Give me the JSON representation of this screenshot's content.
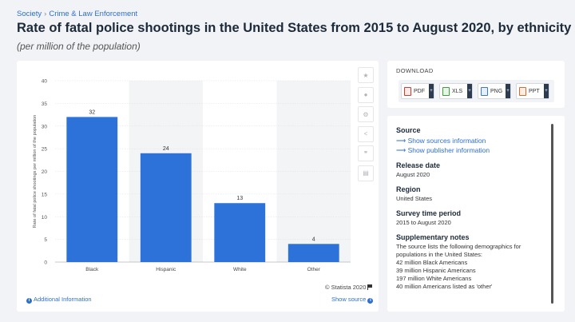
{
  "breadcrumb": {
    "section": "Society",
    "separator": "›",
    "category": "Crime & Law Enforcement"
  },
  "title": "Rate of fatal police shootings in the United States from 2015 to August 2020, by ethnicity",
  "subtitle": "(per million of the population)",
  "chart_data": {
    "type": "bar",
    "categories": [
      "Black",
      "Hispanic",
      "White",
      "Other"
    ],
    "values": [
      32,
      24,
      13,
      4
    ],
    "ylabel": "Rate of fatal police shootings per million of the population",
    "ylim": [
      0,
      40
    ],
    "yticks": [
      0,
      5,
      10,
      15,
      20,
      25,
      30,
      35,
      40
    ],
    "bar_color": "#2d72d9",
    "grid": true,
    "alternate_band_color": "#f3f4f6"
  },
  "chart_footer": {
    "credit": "© Statista 2020",
    "additional_info": "Additional Information",
    "show_source": "Show source"
  },
  "toolbar": {
    "icons": [
      "star-icon",
      "bell-icon",
      "gear-icon",
      "share-icon",
      "quote-icon",
      "print-icon"
    ]
  },
  "download": {
    "title": "DOWNLOAD",
    "buttons": [
      {
        "label": "PDF",
        "color": "#d23b2e"
      },
      {
        "label": "XLS",
        "color": "#3d9b3a"
      },
      {
        "label": "PNG",
        "color": "#3a78c9"
      },
      {
        "label": "PPT",
        "color": "#d86a2b"
      }
    ],
    "plus": "+"
  },
  "meta": {
    "source_head": "Source",
    "show_sources": "Show sources information",
    "show_publisher": "Show publisher information",
    "release_head": "Release date",
    "release_val": "August 2020",
    "region_head": "Region",
    "region_val": "United States",
    "survey_head": "Survey time period",
    "survey_val": "2015 to August 2020",
    "notes_head": "Supplementary notes",
    "notes_lines": [
      "The source lists the following demographics for",
      "populations in the United States:",
      "42 million Black Americans",
      "39 million Hispanic Americans",
      "197 million White Americans",
      "40 million Americans listed as 'other'"
    ]
  }
}
